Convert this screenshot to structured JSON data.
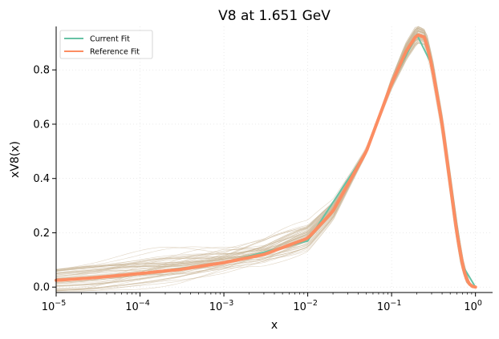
{
  "chart_data": {
    "type": "line",
    "title": "V8 at 1.651 GeV",
    "xlabel": "x",
    "ylabel": "xV8(x)",
    "xscale": "log",
    "xlim": [
      1e-05,
      1.6
    ],
    "ylim": [
      -0.02,
      0.96
    ],
    "grid": true,
    "legend_position": "top-left",
    "x_ticks": [
      {
        "value": 1e-05,
        "base": "10",
        "exp": "−5"
      },
      {
        "value": 0.0001,
        "base": "10",
        "exp": "−4"
      },
      {
        "value": 0.001,
        "base": "10",
        "exp": "−3"
      },
      {
        "value": 0.01,
        "base": "10",
        "exp": "−2"
      },
      {
        "value": 0.1,
        "base": "10",
        "exp": "−1"
      },
      {
        "value": 1,
        "base": "10",
        "exp": "0"
      }
    ],
    "y_ticks": [
      {
        "value": 0.0,
        "label": "0.0"
      },
      {
        "value": 0.2,
        "label": "0.2"
      },
      {
        "value": 0.4,
        "label": "0.4"
      },
      {
        "value": 0.6,
        "label": "0.6"
      },
      {
        "value": 0.8,
        "label": "0.8"
      }
    ],
    "series": [
      {
        "name": "Current Fit",
        "color": "#66c2a5",
        "x": [
          1e-05,
          0.0001,
          0.001,
          0.01,
          0.05,
          0.1,
          0.2,
          0.3,
          0.5,
          0.7,
          1.0
        ],
        "y": [
          0.025,
          0.05,
          0.09,
          0.17,
          0.5,
          0.75,
          0.93,
          0.82,
          0.4,
          0.08,
          0.0
        ]
      },
      {
        "name": "Reference Fit",
        "color": "#fc8d62",
        "x": [
          1e-05,
          3e-05,
          0.0001,
          0.0003,
          0.001,
          0.003,
          0.01,
          0.02,
          0.05,
          0.1,
          0.15,
          0.2,
          0.25,
          0.3,
          0.4,
          0.5,
          0.6,
          0.7,
          0.8,
          0.9,
          1.0
        ],
        "y": [
          0.025,
          0.035,
          0.05,
          0.065,
          0.09,
          0.12,
          0.18,
          0.28,
          0.5,
          0.75,
          0.87,
          0.93,
          0.92,
          0.82,
          0.6,
          0.38,
          0.2,
          0.08,
          0.02,
          0.003,
          0.0
        ]
      }
    ],
    "replicas": {
      "color": "#c8b496",
      "count": 60
    }
  }
}
